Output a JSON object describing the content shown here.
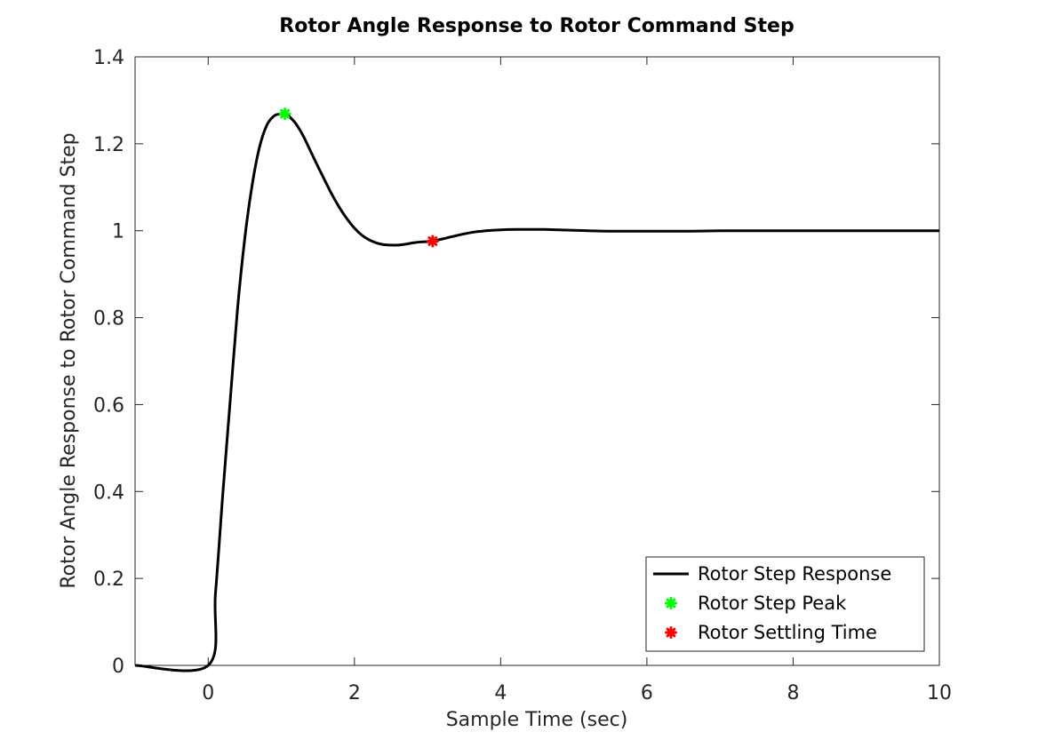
{
  "chart_data": {
    "type": "line",
    "title": "Rotor Angle Response to Rotor Command Step",
    "xlabel": "Sample Time (sec)",
    "ylabel": "Rotor Angle Response to Rotor Command Step",
    "xlim": [
      -1,
      10
    ],
    "ylim": [
      0,
      1.4
    ],
    "xticks": [
      0,
      2,
      4,
      6,
      8,
      10
    ],
    "xtick_labels": [
      "0",
      "2",
      "4",
      "6",
      "8",
      "10"
    ],
    "yticks": [
      0,
      0.2,
      0.4,
      0.6,
      0.8,
      1,
      1.2,
      1.4
    ],
    "ytick_labels": [
      "0",
      "0.2",
      "0.4",
      "0.6",
      "0.8",
      "1",
      "1.2",
      "1.4"
    ],
    "grid": false,
    "legend_position": "bottom-right",
    "series": [
      {
        "name": "Rotor Step Response",
        "color": "#000000",
        "x": [
          -1,
          0,
          0.1,
          0.2,
          0.3,
          0.4,
          0.5,
          0.6,
          0.7,
          0.8,
          0.9,
          1.0,
          1.05,
          1.1,
          1.2,
          1.3,
          1.4,
          1.5,
          1.6,
          1.7,
          1.8,
          1.9,
          2.0,
          2.1,
          2.2,
          2.3,
          2.4,
          2.5,
          2.6,
          2.7,
          2.8,
          2.9,
          3.0,
          3.07,
          3.2,
          3.4,
          3.6,
          3.8,
          4.0,
          4.2,
          4.4,
          4.6,
          4.8,
          5.0,
          5.2,
          5.5,
          5.8,
          6.0,
          6.3,
          6.6,
          7.0,
          7.5,
          8.0,
          8.5,
          9.0,
          9.5,
          10.0
        ],
        "y": [
          0,
          0,
          0.167,
          0.395,
          0.607,
          0.818,
          0.982,
          1.104,
          1.191,
          1.242,
          1.264,
          1.269,
          1.269,
          1.264,
          1.246,
          1.218,
          1.183,
          1.148,
          1.114,
          1.081,
          1.052,
          1.027,
          1.006,
          0.99,
          0.979,
          0.972,
          0.968,
          0.967,
          0.967,
          0.969,
          0.972,
          0.974,
          0.975,
          0.976,
          0.981,
          0.989,
          0.996,
          1.0,
          1.002,
          1.003,
          1.003,
          1.003,
          1.002,
          1.001,
          1.0,
          0.999,
          0.999,
          0.999,
          0.999,
          0.999,
          1.0,
          1.0,
          1.0,
          1.0,
          1.0,
          1.0,
          1.0
        ]
      },
      {
        "name": "Rotor Step Peak",
        "color": "#00ff00",
        "marker": "asterisk",
        "x": [
          1.05
        ],
        "y": [
          1.269
        ]
      },
      {
        "name": "Rotor Settling Time",
        "color": "#ff0000",
        "marker": "asterisk",
        "x": [
          3.07
        ],
        "y": [
          0.976
        ]
      }
    ]
  }
}
